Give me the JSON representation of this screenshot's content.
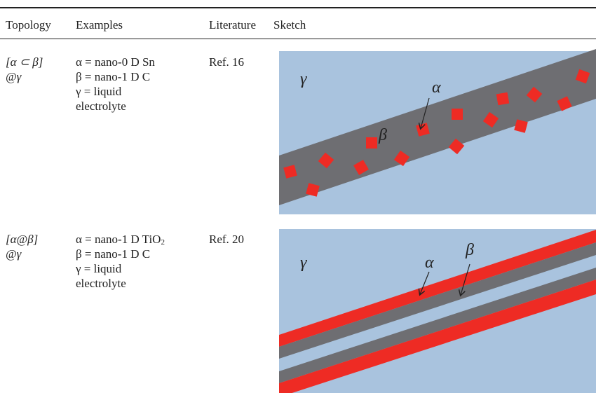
{
  "header": {
    "columns": [
      "Topology",
      "Examples",
      "Literature",
      "Sketch"
    ]
  },
  "rows": [
    {
      "topology": [
        "[α ⊂ β]",
        "@γ"
      ],
      "examples": [
        {
          "text": "α = nano-0 D Sn"
        },
        {
          "text": "β = nano-1 D C"
        },
        {
          "text": "γ = liquid"
        },
        {
          "text": "electrolyte"
        }
      ],
      "literature": "Ref. 16",
      "sketch_labels": {
        "gamma": "γ",
        "alpha": "α",
        "beta": "β"
      }
    },
    {
      "topology": [
        "[α@β]",
        "@γ"
      ],
      "examples": [
        {
          "text": "α = nano-1 D TiO",
          "sub": "2"
        },
        {
          "text": "β = nano-1 D C"
        },
        {
          "text": "γ = liquid"
        },
        {
          "text": "electrolyte"
        }
      ],
      "literature": "Ref. 20",
      "sketch_labels": {
        "gamma": "γ",
        "alpha": "α",
        "beta": "β"
      }
    }
  ]
}
